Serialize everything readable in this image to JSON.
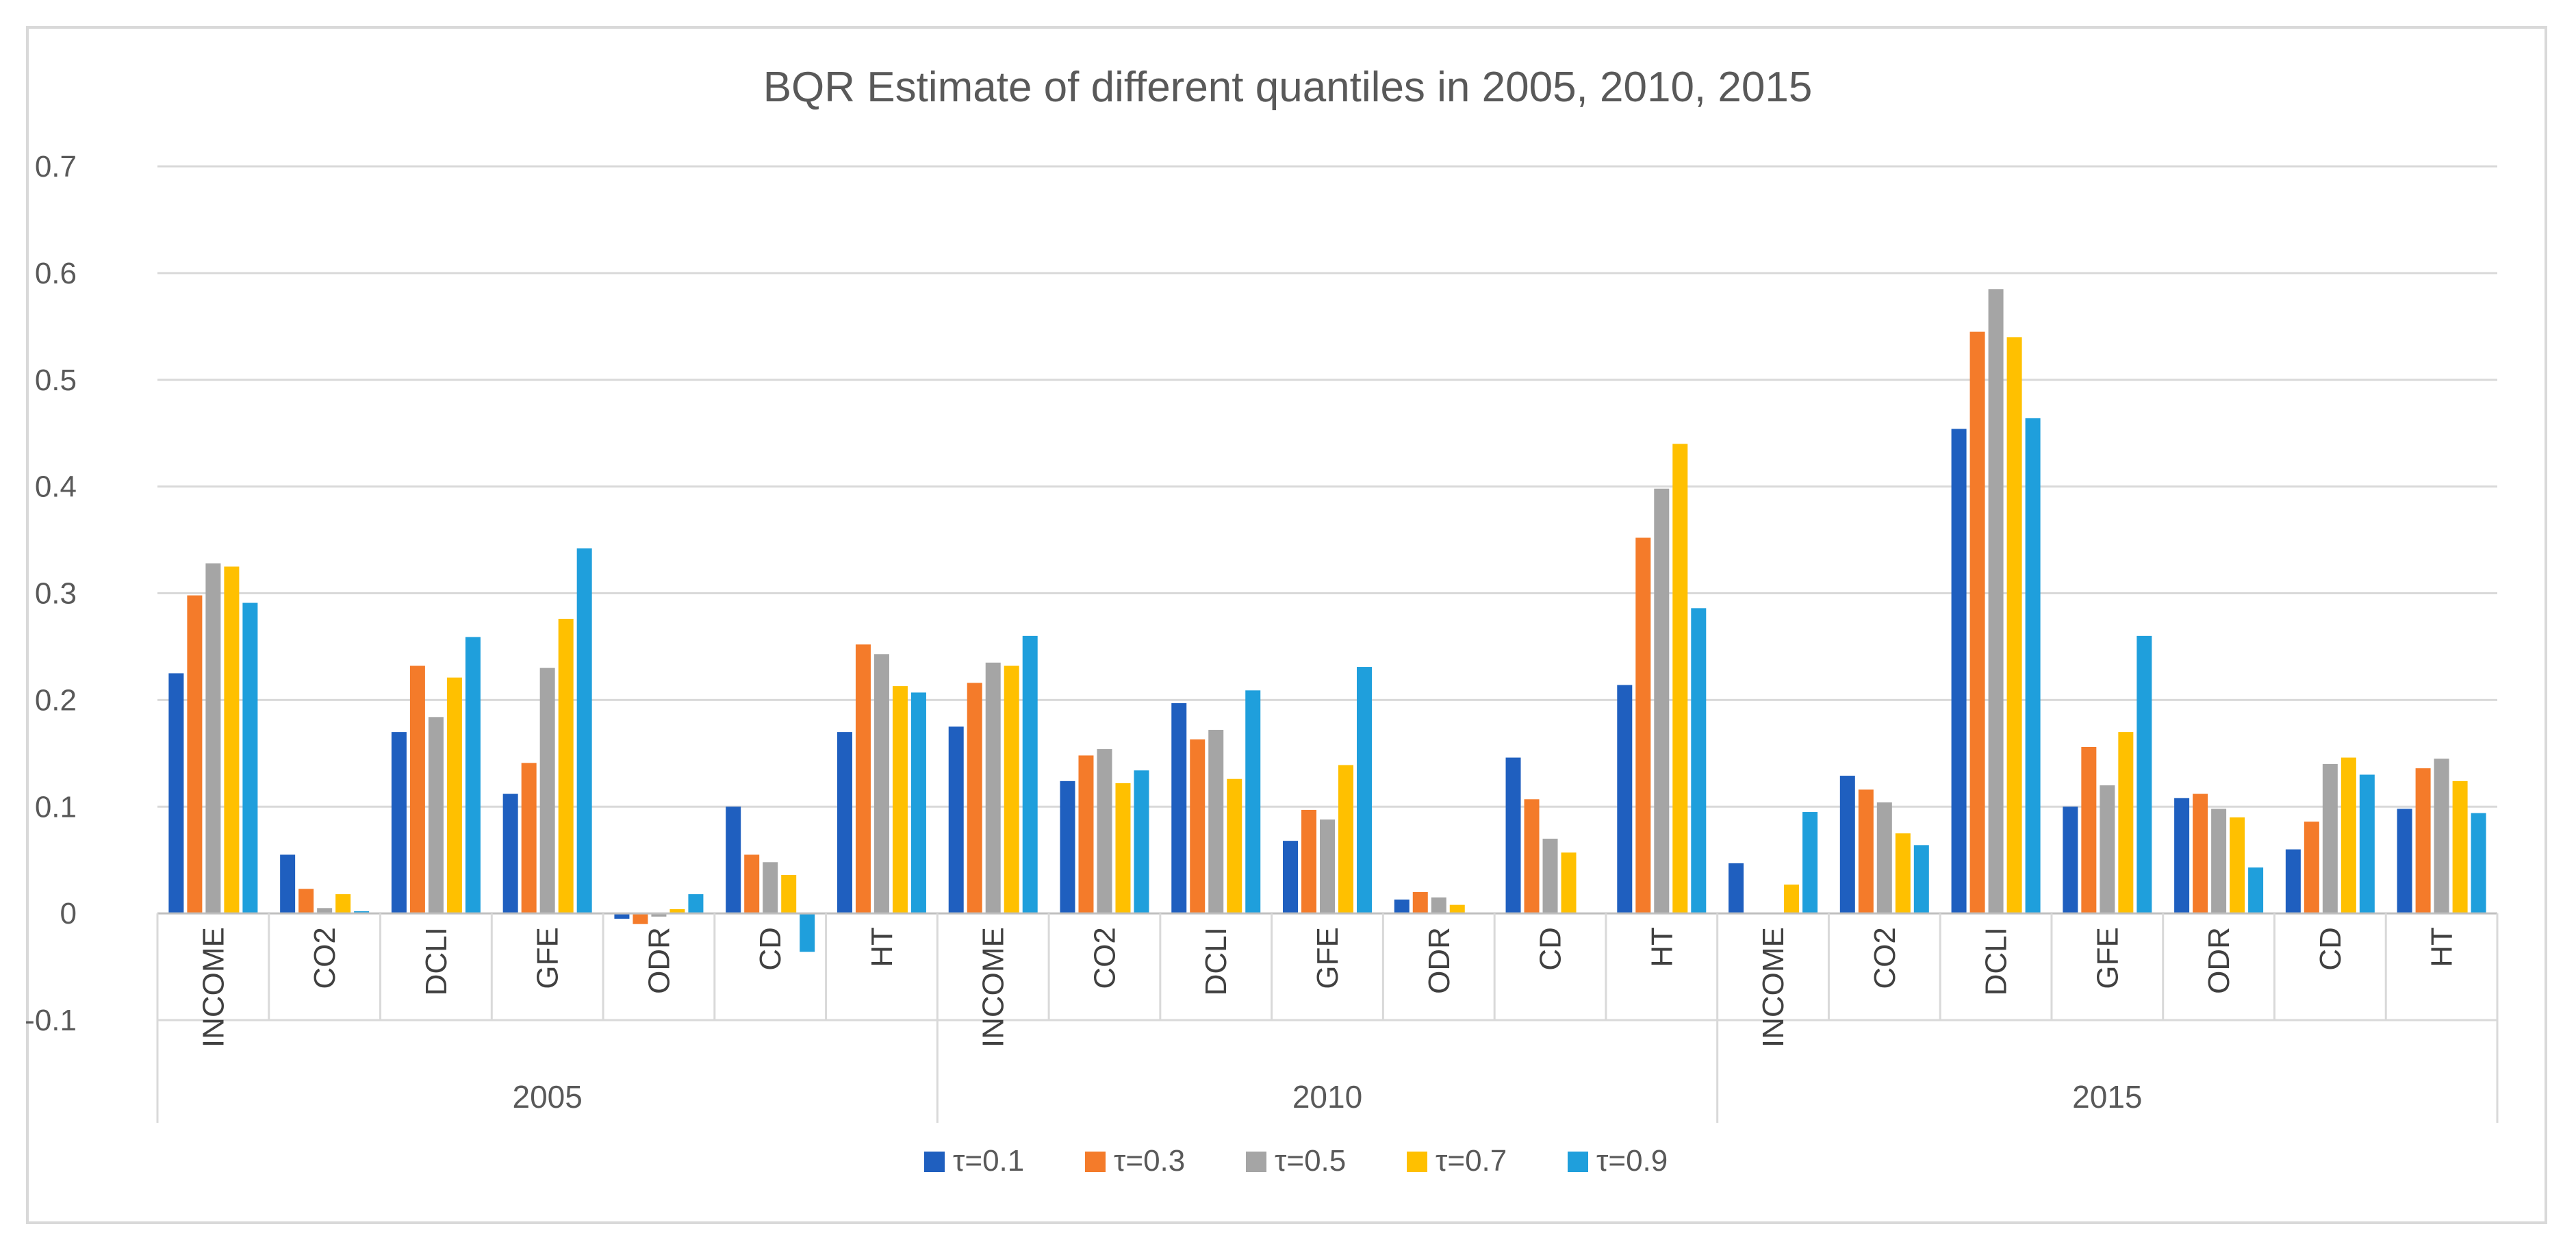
{
  "chart_data": {
    "type": "bar",
    "title": "BQR Estimate of different quantiles in 2005, 2010, 2015",
    "xlabel": "",
    "ylabel": "",
    "ylim": [
      -0.1,
      0.7
    ],
    "yticks": [
      "0.7",
      "0.6",
      "0.5",
      "0.4",
      "0.3",
      "0.2",
      "0.1",
      "0",
      "-0.1"
    ],
    "ytick_values": [
      0.7,
      0.6,
      0.5,
      0.4,
      0.3,
      0.2,
      0.1,
      0,
      -0.1
    ],
    "grid": true,
    "legend_position": "bottom",
    "groups": [
      {
        "label": "2005",
        "categories": [
          "INCOME",
          "CO2",
          "DCLI",
          "GFE",
          "ODR",
          "CD",
          "HT"
        ]
      },
      {
        "label": "2010",
        "categories": [
          "INCOME",
          "CO2",
          "DCLI",
          "GFE",
          "ODR",
          "CD",
          "HT"
        ]
      },
      {
        "label": "2015",
        "categories": [
          "INCOME",
          "CO2",
          "DCLI",
          "GFE",
          "ODR",
          "CD",
          "HT"
        ]
      }
    ],
    "series": [
      {
        "name": "τ=0.1",
        "color": "#1f5fbf",
        "values": [
          0.225,
          0.055,
          0.17,
          0.112,
          -0.005,
          0.1,
          0.17,
          0.175,
          0.124,
          0.197,
          0.068,
          0.013,
          0.146,
          0.214,
          0.047,
          0.129,
          0.454,
          0.1,
          0.108,
          0.06,
          0.098
        ]
      },
      {
        "name": "τ=0.3",
        "color": "#f47b2a",
        "values": [
          0.298,
          0.023,
          0.232,
          0.141,
          -0.01,
          0.055,
          0.252,
          0.216,
          0.148,
          0.163,
          0.097,
          0.02,
          0.107,
          0.352,
          0.0,
          0.116,
          0.545,
          0.156,
          0.112,
          0.086,
          0.136
        ]
      },
      {
        "name": "τ=0.5",
        "color": "#a5a5a5",
        "values": [
          0.328,
          0.005,
          0.184,
          0.23,
          -0.003,
          0.048,
          0.243,
          0.235,
          0.154,
          0.172,
          0.088,
          0.015,
          0.07,
          0.398,
          0.0,
          0.104,
          0.585,
          0.12,
          0.098,
          0.14,
          0.145
        ]
      },
      {
        "name": "τ=0.7",
        "color": "#ffc000",
        "values": [
          0.325,
          0.018,
          0.221,
          0.276,
          0.004,
          0.036,
          0.213,
          0.232,
          0.122,
          0.126,
          0.139,
          0.008,
          0.057,
          0.44,
          0.027,
          0.075,
          0.54,
          0.17,
          0.09,
          0.146,
          0.124
        ]
      },
      {
        "name": "τ=0.9",
        "color": "#1f9fdc",
        "values": [
          0.291,
          0.002,
          0.259,
          0.342,
          0.018,
          -0.036,
          0.207,
          0.26,
          0.134,
          0.209,
          0.231,
          0.0,
          0.0,
          0.286,
          0.095,
          0.064,
          0.464,
          0.26,
          0.043,
          0.13,
          0.094
        ]
      }
    ]
  }
}
